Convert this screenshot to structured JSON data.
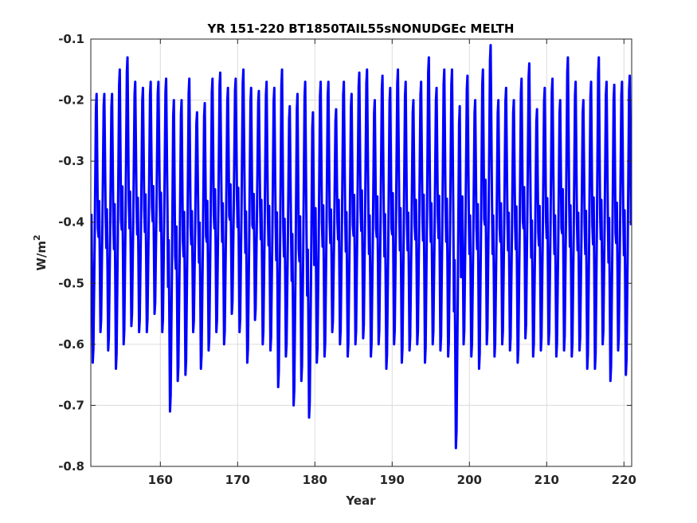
{
  "chart_data": {
    "type": "line",
    "title": "YR 151-220 BT1850TAIL55sNONUDGEc MELTH",
    "xlabel": "Year",
    "ylabel": "W/m",
    "ylabel_sup": "2",
    "xlim": [
      151,
      221
    ],
    "ylim": [
      -0.8,
      -0.1
    ],
    "xticks": [
      160,
      170,
      180,
      190,
      200,
      210,
      220
    ],
    "xtick_labels": [
      "160",
      "170",
      "180",
      "190",
      "200",
      "210",
      "220"
    ],
    "yticks": [
      -0.8,
      -0.7,
      -0.6,
      -0.5,
      -0.4,
      -0.3,
      -0.2,
      -0.1
    ],
    "ytick_labels": [
      "-0.8",
      "-0.7",
      "-0.6",
      "-0.5",
      "-0.4",
      "-0.3",
      "-0.2",
      "-0.1"
    ],
    "grid": true,
    "legend": "none",
    "series_color": "#0000ff",
    "series": [
      {
        "x_start": 151,
        "step_years": 0.08333,
        "annual_max": [
          -0.19,
          -0.19,
          -0.19,
          -0.15,
          -0.13,
          -0.17,
          -0.18,
          -0.17,
          -0.17,
          -0.165,
          -0.2,
          -0.2,
          -0.165,
          -0.22,
          -0.205,
          -0.165,
          -0.155,
          -0.18,
          -0.165,
          -0.15,
          -0.18,
          -0.185,
          -0.17,
          -0.18,
          -0.15,
          -0.21,
          -0.19,
          -0.17,
          -0.22,
          -0.17,
          -0.17,
          -0.215,
          -0.17,
          -0.19,
          -0.155,
          -0.15,
          -0.2,
          -0.16,
          -0.18,
          -0.15,
          -0.17,
          -0.2,
          -0.17,
          -0.13,
          -0.18,
          -0.15,
          -0.15,
          -0.21,
          -0.16,
          -0.2,
          -0.15,
          -0.11,
          -0.2,
          -0.18,
          -0.2,
          -0.165,
          -0.14,
          -0.215,
          -0.18,
          -0.165,
          -0.2,
          -0.13,
          -0.17,
          -0.2,
          -0.17,
          -0.13,
          -0.17,
          -0.175,
          -0.17,
          -0.16
        ],
        "annual_min": [
          -0.63,
          -0.58,
          -0.61,
          -0.64,
          -0.6,
          -0.57,
          -0.58,
          -0.58,
          -0.55,
          -0.58,
          -0.71,
          -0.66,
          -0.65,
          -0.58,
          -0.64,
          -0.61,
          -0.58,
          -0.6,
          -0.55,
          -0.58,
          -0.63,
          -0.56,
          -0.6,
          -0.61,
          -0.67,
          -0.62,
          -0.7,
          -0.66,
          -0.72,
          -0.63,
          -0.62,
          -0.58,
          -0.6,
          -0.62,
          -0.6,
          -0.59,
          -0.62,
          -0.6,
          -0.64,
          -0.6,
          -0.63,
          -0.61,
          -0.6,
          -0.63,
          -0.6,
          -0.61,
          -0.62,
          -0.77,
          -0.6,
          -0.62,
          -0.64,
          -0.6,
          -0.62,
          -0.6,
          -0.61,
          -0.63,
          -0.59,
          -0.62,
          -0.61,
          -0.6,
          -0.62,
          -0.61,
          -0.62,
          -0.61,
          -0.64,
          -0.64,
          -0.6,
          -0.66,
          -0.61,
          -0.65
        ],
        "monthly_shape": [
          0.4,
          0.55,
          0.3,
          0.0,
          0.05,
          0.25,
          0.45,
          0.7,
          0.95,
          1.0,
          0.75,
          0.5
        ]
      }
    ]
  }
}
